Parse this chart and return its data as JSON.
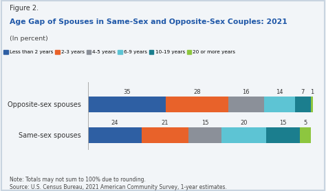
{
  "figure_label": "Figure 2.",
  "title": "Age Gap of Spouses in Same-Sex and Opposite-Sex Couples: 2021",
  "subtitle": "(In percent)",
  "categories": [
    "Opposite-sex spouses",
    "Same-sex spouses"
  ],
  "segments": [
    "Less than 2 years",
    "2-3 years",
    "4-5 years",
    "6-9 years",
    "10-19 years",
    "20 or more years"
  ],
  "colors": [
    "#2E5FA3",
    "#E8622A",
    "#8B9099",
    "#5DC4D4",
    "#1B7E8E",
    "#8DC63F"
  ],
  "values": [
    [
      35,
      28,
      16,
      14,
      7,
      1
    ],
    [
      24,
      21,
      15,
      20,
      15,
      5
    ]
  ],
  "background_color": "#f2f5f8",
  "border_color": "#c8d4e0",
  "note_text": "Note: Totals may not sum to 100% due to rounding.\nSource: U.S. Census Bureau, 2021 American Community Survey, 1-year estimates.",
  "title_color": "#2058A8",
  "figure_label_color": "#333333",
  "subtitle_color": "#444444",
  "note_color": "#444444",
  "label_color": "#333333"
}
